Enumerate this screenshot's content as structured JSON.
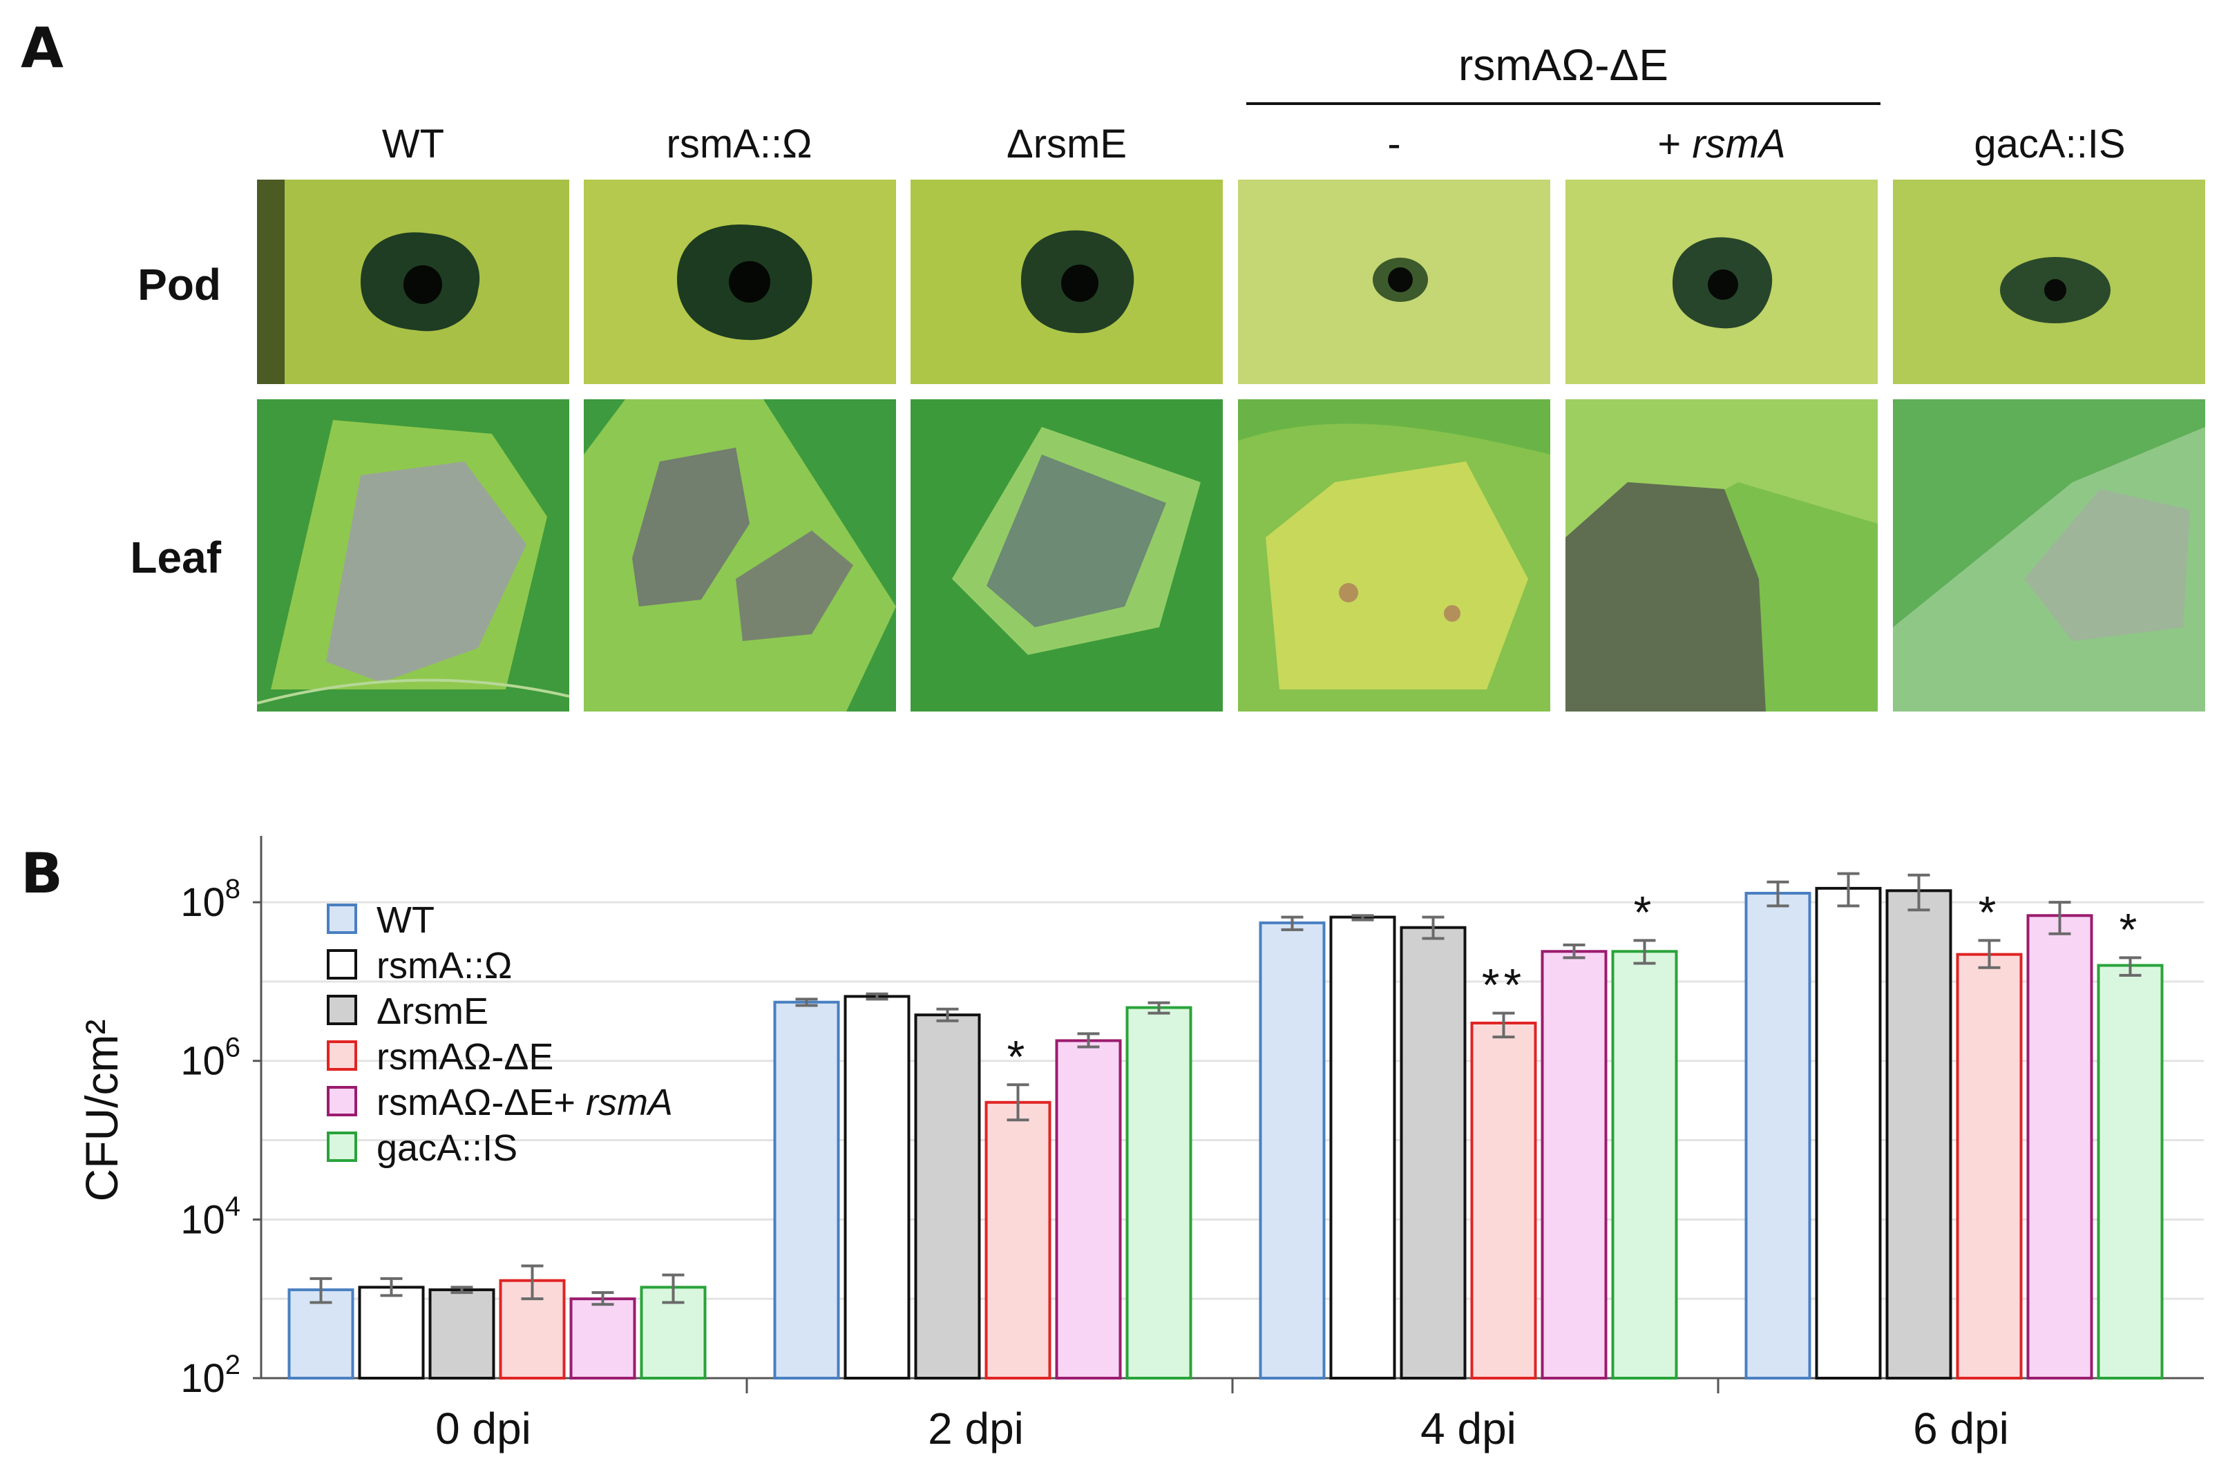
{
  "panels": {
    "a_label": "A",
    "b_label": "B"
  },
  "group_header": "rsmAΩ-ΔE",
  "columns": [
    {
      "label": "WT",
      "italic_suffix": ""
    },
    {
      "label": "rsmA::Ω",
      "italic_suffix": ""
    },
    {
      "label": "ΔrsmE",
      "italic_suffix": ""
    },
    {
      "label": "-",
      "italic_suffix": ""
    },
    {
      "label": "+ ",
      "italic_suffix": "rsmA"
    },
    {
      "label": "gacA::IS",
      "italic_suffix": ""
    }
  ],
  "rows": {
    "pod": "Pod",
    "leaf": "Leaf"
  },
  "chart_data": {
    "type": "bar",
    "scale": "log10",
    "ylabel": "CFU/cm²",
    "ylim_exponent": [
      2,
      8
    ],
    "yticks": [
      {
        "base": "10",
        "exp": "2",
        "value": 100
      },
      {
        "base": "10",
        "exp": "4",
        "value": 10000
      },
      {
        "base": "10",
        "exp": "6",
        "value": 1000000
      },
      {
        "base": "10",
        "exp": "8",
        "value": 100000000
      }
    ],
    "categories": [
      "0 dpi",
      "2 dpi",
      "4 dpi",
      "6 dpi"
    ],
    "legend_position": "top-left",
    "grid": true,
    "series": [
      {
        "name": "WT",
        "name_italic": "",
        "fill": "#d6e4f5",
        "stroke": "#4a7fc1",
        "values": [
          1300,
          5500000,
          55000000,
          130000000
        ],
        "err_low": [
          900,
          5000000,
          45000000,
          90000000
        ],
        "err_high": [
          1800,
          6000000,
          65000000,
          180000000
        ]
      },
      {
        "name": "rsmA::Ω",
        "name_italic": "",
        "fill": "#ffffff",
        "stroke": "#111111",
        "values": [
          1400,
          6500000,
          65000000,
          150000000
        ],
        "err_low": [
          1100,
          6000000,
          60000000,
          90000000
        ],
        "err_high": [
          1800,
          7000000,
          68000000,
          230000000
        ]
      },
      {
        "name": "ΔrsmE",
        "name_italic": "",
        "fill": "#d0d0d0",
        "stroke": "#111111",
        "values": [
          1300,
          3800000,
          48000000,
          140000000
        ],
        "err_low": [
          1200,
          3200000,
          35000000,
          80000000
        ],
        "err_high": [
          1400,
          4500000,
          65000000,
          220000000
        ]
      },
      {
        "name": "rsmAΩ-ΔE",
        "name_italic": "",
        "fill": "#fcd9d9",
        "stroke": "#e02424",
        "values": [
          1700,
          300000,
          3000000,
          22000000
        ],
        "err_low": [
          1000,
          180000,
          2000000,
          15000000
        ],
        "err_high": [
          2600,
          500000,
          4000000,
          33000000
        ],
        "annotations": [
          "",
          "*",
          "**",
          "*"
        ]
      },
      {
        "name": "rsmAΩ-ΔE+ ",
        "name_italic": "rsmA",
        "fill": "#f8d5f5",
        "stroke": "#9b1c6e",
        "values": [
          1000,
          1800000,
          24000000,
          68000000
        ],
        "err_low": [
          850,
          1500000,
          20000000,
          40000000
        ],
        "err_high": [
          1200,
          2200000,
          29000000,
          100000000
        ]
      },
      {
        "name": "gacA::IS",
        "name_italic": "",
        "fill": "#d9f7de",
        "stroke": "#2aa33a",
        "values": [
          1400,
          4700000,
          24000000,
          16000000
        ],
        "err_low": [
          900,
          4000000,
          17000000,
          12000000
        ],
        "err_high": [
          2000,
          5400000,
          33000000,
          20000000
        ],
        "annotations": [
          "",
          "",
          "*",
          "*"
        ]
      }
    ]
  }
}
